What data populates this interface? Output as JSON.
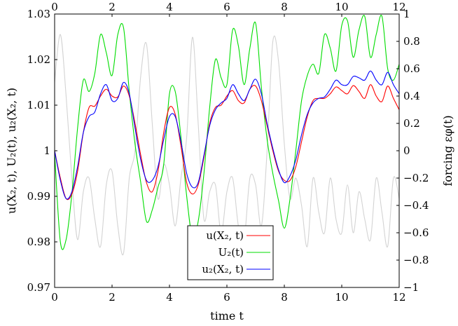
{
  "chart_data": {
    "type": "line",
    "xlabel": "time t",
    "ylabel": "u(X₂, t), U₂(t), u₂(X₂, t)",
    "ylabel_right": "forcing εφ(t)",
    "xlim": [
      0,
      12
    ],
    "ylim": [
      0.97,
      1.03
    ],
    "ylim_right": [
      -1,
      1
    ],
    "xticks": [
      "0",
      "2",
      "4",
      "6",
      "8",
      "10",
      "12"
    ],
    "xticks_top": [
      "0",
      "2",
      "4",
      "6",
      "8",
      "10",
      "12"
    ],
    "yticks": [
      "0.97",
      "0.98",
      "0.99",
      "1",
      "1.01",
      "1.02",
      "1.03"
    ],
    "yticks_right": [
      "−1",
      "−0.8",
      "−0.6",
      "−0.4",
      "−0.2",
      "0",
      "0.2",
      "0.4",
      "0.6",
      "0.8",
      "1"
    ],
    "grid": false,
    "legend_position": "bottom-center",
    "series": [
      {
        "name": "u(X₂, t)",
        "color": "#ff0000",
        "axis": "left",
        "x": [
          0,
          0.2,
          0.4,
          0.6,
          0.8,
          1.0,
          1.2,
          1.4,
          1.6,
          1.8,
          2.0,
          2.2,
          2.4,
          2.6,
          2.8,
          3.0,
          3.2,
          3.4,
          3.6,
          3.8,
          4.0,
          4.2,
          4.4,
          4.6,
          4.8,
          5.0,
          5.2,
          5.4,
          5.6,
          5.8,
          6.0,
          6.2,
          6.4,
          6.6,
          6.8,
          7.0,
          7.2,
          7.4,
          7.6,
          7.8,
          8.0,
          8.2,
          8.4,
          8.6,
          8.8,
          9.0,
          9.2,
          9.4,
          9.6,
          9.8,
          10.0,
          10.2,
          10.4,
          10.6,
          10.8,
          11.0,
          11.2,
          11.4,
          11.6,
          11.8,
          12.0
        ],
        "values": [
          1.0,
          0.994,
          0.9895,
          0.9905,
          0.9955,
          1.004,
          1.0095,
          1.0098,
          1.012,
          1.0135,
          1.012,
          1.0118,
          1.0142,
          1.012,
          1.006,
          0.999,
          0.993,
          0.991,
          0.9955,
          1.004,
          1.0095,
          1.008,
          1.001,
          0.993,
          0.9905,
          0.9925,
          0.9985,
          1.006,
          1.0095,
          1.01,
          1.012,
          1.0132,
          1.011,
          1.0105,
          1.0135,
          1.0142,
          1.011,
          1.0055,
          1.0,
          0.9955,
          0.9935,
          0.9935,
          0.9965,
          1.002,
          1.0075,
          1.011,
          1.0115,
          1.0115,
          1.0125,
          1.014,
          1.0132,
          1.0125,
          1.0143,
          1.013,
          1.0115,
          1.0145,
          1.012,
          1.0108,
          1.0142,
          1.0115,
          1.009
        ]
      },
      {
        "name": "U₂(t)",
        "color": "#00dd00",
        "axis": "left",
        "x": [
          0,
          0.2,
          0.4,
          0.6,
          0.8,
          1.0,
          1.2,
          1.4,
          1.6,
          1.8,
          2.0,
          2.2,
          2.4,
          2.6,
          2.8,
          3.0,
          3.2,
          3.4,
          3.6,
          3.8,
          4.0,
          4.2,
          4.4,
          4.6,
          4.8,
          5.0,
          5.2,
          5.4,
          5.6,
          5.8,
          6.0,
          6.2,
          6.4,
          6.6,
          6.8,
          7.0,
          7.2,
          7.4,
          7.6,
          7.8,
          8.0,
          8.2,
          8.4,
          8.6,
          8.8,
          9.0,
          9.2,
          9.4,
          9.6,
          9.8,
          10.0,
          10.2,
          10.4,
          10.6,
          10.8,
          11.0,
          11.2,
          11.4,
          11.6,
          11.8,
          12.0
        ],
        "values": [
          0.9995,
          0.98,
          0.9805,
          0.9905,
          1.005,
          1.0155,
          1.013,
          1.017,
          1.0255,
          1.0215,
          1.0165,
          1.0255,
          1.027,
          1.013,
          1.0015,
          0.993,
          0.9845,
          0.987,
          0.992,
          0.997,
          1.0125,
          1.013,
          1.003,
          0.99,
          0.981,
          0.9845,
          0.995,
          1.0095,
          1.02,
          1.016,
          1.0145,
          1.0265,
          1.023,
          1.0145,
          1.0225,
          1.028,
          1.014,
          1.0025,
          0.995,
          0.989,
          0.983,
          0.9895,
          1.0,
          1.011,
          1.0165,
          1.019,
          1.017,
          1.0255,
          1.0225,
          1.0175,
          1.0275,
          1.0285,
          1.0205,
          1.0265,
          1.0295,
          1.0205,
          1.0255,
          1.0295,
          1.018,
          1.0155,
          1.019
        ]
      },
      {
        "name": "u₂(X₂, t)",
        "color": "#0000ff",
        "axis": "left",
        "x": [
          0,
          0.2,
          0.4,
          0.6,
          0.8,
          1.0,
          1.2,
          1.4,
          1.6,
          1.8,
          2.0,
          2.2,
          2.4,
          2.6,
          2.8,
          3.0,
          3.2,
          3.4,
          3.6,
          3.8,
          4.0,
          4.2,
          4.4,
          4.6,
          4.8,
          5.0,
          5.2,
          5.4,
          5.6,
          5.8,
          6.0,
          6.2,
          6.4,
          6.6,
          6.8,
          7.0,
          7.2,
          7.4,
          7.6,
          7.8,
          8.0,
          8.2,
          8.4,
          8.6,
          8.8,
          9.0,
          9.2,
          9.4,
          9.6,
          9.8,
          10.0,
          10.2,
          10.4,
          10.6,
          10.8,
          11.0,
          11.2,
          11.4,
          11.6,
          11.8,
          12.0
        ],
        "values": [
          1.0,
          0.9935,
          0.9895,
          0.991,
          0.9965,
          1.004,
          1.0075,
          1.0085,
          1.0125,
          1.0145,
          1.011,
          1.0115,
          1.015,
          1.0125,
          1.005,
          0.998,
          0.9935,
          0.9935,
          0.9965,
          1.0025,
          1.0075,
          1.0075,
          1.002,
          0.995,
          0.992,
          0.993,
          0.999,
          1.0055,
          1.009,
          1.0105,
          1.0115,
          1.0145,
          1.0125,
          1.011,
          1.0135,
          1.0157,
          1.0125,
          1.006,
          1.0005,
          0.9958,
          0.993,
          0.9945,
          0.998,
          1.0035,
          1.008,
          1.0105,
          1.0115,
          1.0118,
          1.0135,
          1.0155,
          1.0145,
          1.0145,
          1.0163,
          1.016,
          1.0155,
          1.0175,
          1.0155,
          1.0145,
          1.0172,
          1.0145,
          1.0125
        ]
      },
      {
        "name": "",
        "color": "#d3d3d3",
        "axis": "right",
        "x": [
          0,
          0.2,
          0.4,
          0.6,
          0.8,
          1.0,
          1.2,
          1.4,
          1.6,
          1.8,
          2.0,
          2.2,
          2.4,
          2.6,
          2.8,
          3.0,
          3.2,
          3.4,
          3.6,
          3.8,
          4.0,
          4.2,
          4.4,
          4.6,
          4.8,
          5.0,
          5.2,
          5.4,
          5.6,
          5.8,
          6.0,
          6.2,
          6.4,
          6.6,
          6.8,
          7.0,
          7.2,
          7.4,
          7.6,
          7.8,
          8.0,
          8.2,
          8.4,
          8.6,
          8.8,
          9.0,
          9.2,
          9.4,
          9.6,
          9.8,
          10.0,
          10.2,
          10.4,
          10.6,
          10.8,
          11.0,
          11.2,
          11.4,
          11.6,
          11.8,
          12.0
        ],
        "values": [
          0.5,
          0.85,
          0.4,
          -0.2,
          -0.65,
          -0.3,
          -0.2,
          -0.5,
          -0.7,
          -0.25,
          -0.15,
          -0.55,
          -0.75,
          -0.2,
          0.0,
          0.55,
          0.78,
          0.2,
          -0.35,
          -0.1,
          -0.25,
          -0.55,
          -0.2,
          0.1,
          0.83,
          0.2,
          -0.5,
          -0.3,
          -0.25,
          -0.6,
          -0.3,
          -0.2,
          -0.55,
          -0.65,
          -0.2,
          -0.25,
          -0.55,
          0.0,
          0.8,
          0.65,
          0.05,
          -0.35,
          -0.2,
          -0.4,
          -0.7,
          -0.2,
          -0.45,
          -0.6,
          -0.2,
          -0.5,
          -0.6,
          -0.25,
          -0.6,
          -0.3,
          -0.5,
          -0.65,
          -0.2,
          -0.45,
          -0.7,
          -0.2,
          -0.35
        ]
      }
    ]
  }
}
